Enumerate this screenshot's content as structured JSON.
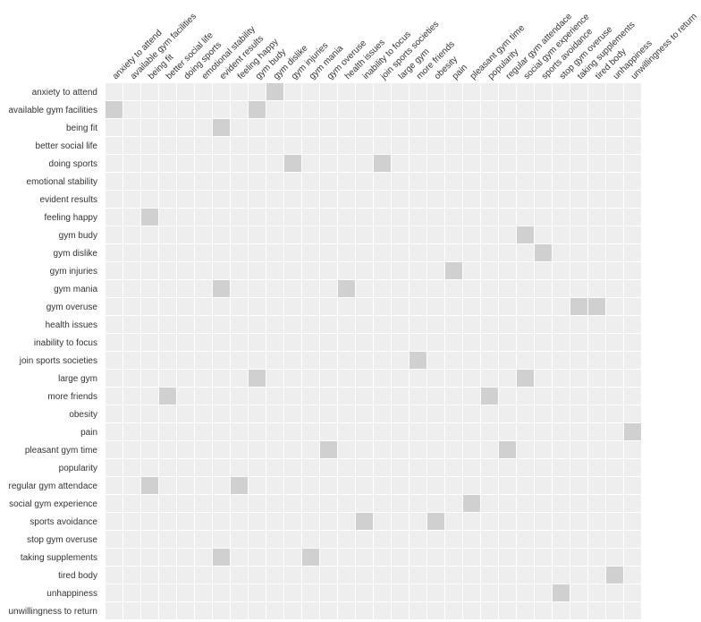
{
  "chart_data": {
    "type": "heatmap",
    "title": "",
    "xlabel": "",
    "ylabel": "",
    "grid": true,
    "colors": {
      "background": "#eeeeee",
      "filled": "#d0d0d0",
      "grid": "#ffffff"
    },
    "columns": [
      "anxiety to attend",
      "available gym facilities",
      "being fit",
      "better social life",
      "doing sports",
      "emotional stability",
      "evident results",
      "feeling happy",
      "gym budy",
      "gym dislike",
      "gym injuries",
      "gym mania",
      "gym overuse",
      "health issues",
      "inability to focus",
      "join sports societies",
      "large gym",
      "more friends",
      "obesity",
      "pain",
      "pleasant gym time",
      "popularity",
      "regular gym attendace",
      "social gym experience",
      "sports avoidance",
      "stop gym overuse",
      "taking supplements",
      "tired body",
      "unhappiness",
      "unwillingness to return"
    ],
    "rows": [
      "anxiety to attend",
      "available gym facilities",
      "being fit",
      "better social life",
      "doing sports",
      "emotional stability",
      "evident results",
      "feeling happy",
      "gym budy",
      "gym dislike",
      "gym injuries",
      "gym mania",
      "gym overuse",
      "health issues",
      "inability to focus",
      "join sports societies",
      "large gym",
      "more friends",
      "obesity",
      "pain",
      "pleasant gym time",
      "popularity",
      "regular gym attendace",
      "social gym experience",
      "sports avoidance",
      "stop gym overuse",
      "taking supplements",
      "tired body",
      "unhappiness",
      "unwillingness to return"
    ],
    "cells": [
      {
        "row": "anxiety to attend",
        "col": "gym dislike"
      },
      {
        "row": "available gym facilities",
        "col": "anxiety to attend"
      },
      {
        "row": "available gym facilities",
        "col": "gym budy"
      },
      {
        "row": "being fit",
        "col": "evident results"
      },
      {
        "row": "doing sports",
        "col": "gym injuries"
      },
      {
        "row": "doing sports",
        "col": "join sports societies"
      },
      {
        "row": "feeling happy",
        "col": "being fit"
      },
      {
        "row": "gym budy",
        "col": "social gym experience"
      },
      {
        "row": "gym dislike",
        "col": "sports avoidance"
      },
      {
        "row": "gym injuries",
        "col": "pain"
      },
      {
        "row": "gym mania",
        "col": "evident results"
      },
      {
        "row": "gym mania",
        "col": "health issues"
      },
      {
        "row": "gym overuse",
        "col": "taking supplements"
      },
      {
        "row": "gym overuse",
        "col": "tired body"
      },
      {
        "row": "join sports societies",
        "col": "more friends"
      },
      {
        "row": "large gym",
        "col": "gym budy"
      },
      {
        "row": "large gym",
        "col": "social gym experience"
      },
      {
        "row": "more friends",
        "col": "better social life"
      },
      {
        "row": "more friends",
        "col": "popularity"
      },
      {
        "row": "pain",
        "col": "unwillingness to return"
      },
      {
        "row": "pleasant gym time",
        "col": "gym overuse"
      },
      {
        "row": "pleasant gym time",
        "col": "regular gym attendace"
      },
      {
        "row": "regular gym attendace",
        "col": "being fit"
      },
      {
        "row": "regular gym attendace",
        "col": "feeling happy"
      },
      {
        "row": "social gym experience",
        "col": "pleasant gym time"
      },
      {
        "row": "sports avoidance",
        "col": "inability to focus"
      },
      {
        "row": "sports avoidance",
        "col": "obesity"
      },
      {
        "row": "taking supplements",
        "col": "evident results"
      },
      {
        "row": "taking supplements",
        "col": "gym mania"
      },
      {
        "row": "tired body",
        "col": "unhappiness"
      },
      {
        "row": "unhappiness",
        "col": "stop gym overuse"
      }
    ]
  }
}
